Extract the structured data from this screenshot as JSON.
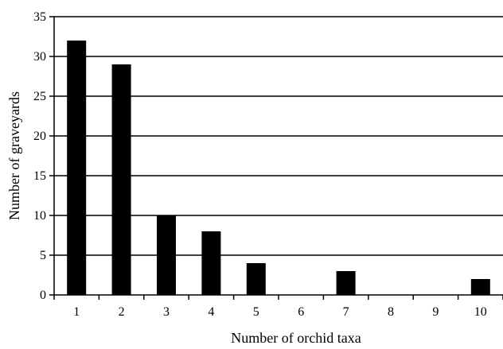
{
  "chart_data": {
    "type": "bar",
    "categories": [
      "1",
      "2",
      "3",
      "4",
      "5",
      "6",
      "7",
      "8",
      "9",
      "10"
    ],
    "values": [
      32,
      29,
      10,
      8,
      4,
      0,
      3,
      0,
      0,
      2
    ],
    "xlabel": "Number of orchid taxa",
    "ylabel": "Number of graveyards",
    "ylim": [
      0,
      35
    ],
    "yticks": [
      "0",
      "5",
      "10",
      "15",
      "20",
      "25",
      "30",
      "35"
    ],
    "grid": true,
    "bar_color": "#000000"
  }
}
